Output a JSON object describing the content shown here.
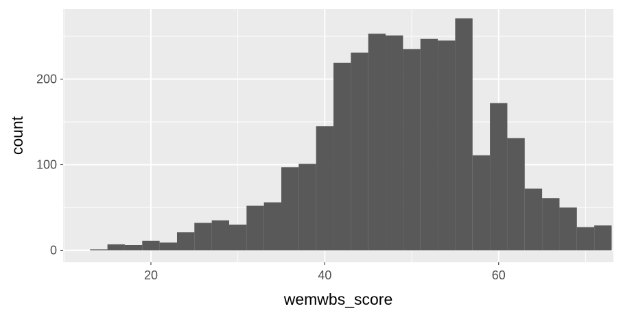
{
  "chart_data": {
    "type": "bar",
    "xlabel": "wemwbs_score",
    "ylabel": "count",
    "xlim": [
      9.9,
      73.2
    ],
    "ylim": [
      -14,
      282
    ],
    "bin_width": 2,
    "x_ticks": [
      20,
      40,
      60
    ],
    "x_minor_ticks": [
      10,
      30,
      50,
      70
    ],
    "y_ticks": [
      0,
      100,
      200
    ],
    "y_minor_ticks": [
      50,
      150,
      250
    ],
    "bins": [
      {
        "x": 14,
        "count": 1
      },
      {
        "x": 16,
        "count": 7
      },
      {
        "x": 18,
        "count": 6
      },
      {
        "x": 20,
        "count": 11
      },
      {
        "x": 22,
        "count": 9
      },
      {
        "x": 24,
        "count": 21
      },
      {
        "x": 26,
        "count": 32
      },
      {
        "x": 28,
        "count": 35
      },
      {
        "x": 30,
        "count": 30
      },
      {
        "x": 32,
        "count": 52
      },
      {
        "x": 34,
        "count": 56
      },
      {
        "x": 36,
        "count": 97
      },
      {
        "x": 38,
        "count": 101
      },
      {
        "x": 40,
        "count": 145
      },
      {
        "x": 42,
        "count": 219
      },
      {
        "x": 44,
        "count": 231
      },
      {
        "x": 46,
        "count": 253
      },
      {
        "x": 48,
        "count": 251
      },
      {
        "x": 50,
        "count": 235
      },
      {
        "x": 52,
        "count": 247
      },
      {
        "x": 54,
        "count": 245
      },
      {
        "x": 56,
        "count": 271
      },
      {
        "x": 58,
        "count": 111
      },
      {
        "x": 60,
        "count": 172
      },
      {
        "x": 62,
        "count": 131
      },
      {
        "x": 64,
        "count": 72
      },
      {
        "x": 66,
        "count": 61
      },
      {
        "x": 68,
        "count": 50
      },
      {
        "x": 70,
        "count": 27
      },
      {
        "x": 72,
        "count": 29
      }
    ],
    "grid": true,
    "colors": {
      "panel_background": "#ebebeb",
      "grid": "#ffffff",
      "bar_fill": "#595959",
      "tick_text": "#4d4d4d"
    }
  }
}
